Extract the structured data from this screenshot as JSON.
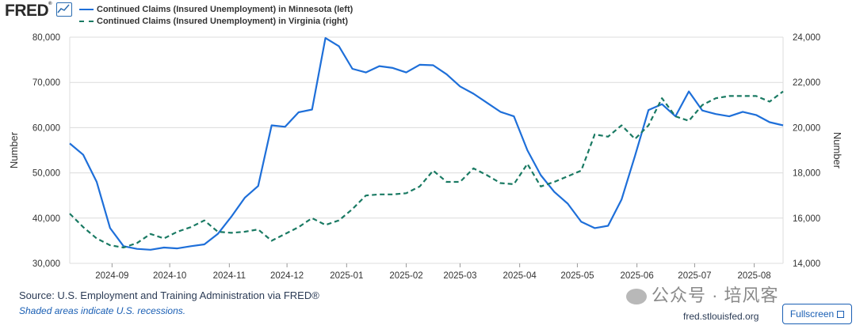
{
  "header": {
    "logo_text": "FRED",
    "logo_mark": "®",
    "logo_icon": "line-graph-icon"
  },
  "chart_data": {
    "type": "line",
    "ylabel_left": "Number",
    "ylabel_right": "Number",
    "ylim_left": [
      30000,
      80000
    ],
    "ylim_right": [
      14000,
      24000
    ],
    "yticks_left": [
      "30,000",
      "40,000",
      "50,000",
      "60,000",
      "70,000",
      "80,000"
    ],
    "yticks_right": [
      "14,000",
      "16,000",
      "18,000",
      "20,000",
      "22,000",
      "24,000"
    ],
    "xticks": [
      "2024-09",
      "2024-10",
      "2024-11",
      "2024-12",
      "2025-01",
      "2025-02",
      "2025-03",
      "2025-04",
      "2025-05",
      "2025-06",
      "2025-07",
      "2025-08"
    ],
    "grid": true,
    "legend_position": "top-left",
    "series": [
      {
        "name": "Continued Claims (Insured Unemployment) in Minnesota (left)",
        "axis": "left",
        "style": "solid",
        "color": "#1e6fd9",
        "x": [
          "2024-08-10",
          "2024-08-17",
          "2024-08-24",
          "2024-08-31",
          "2024-09-07",
          "2024-09-14",
          "2024-09-21",
          "2024-09-28",
          "2024-10-05",
          "2024-10-12",
          "2024-10-19",
          "2024-10-26",
          "2024-11-02",
          "2024-11-09",
          "2024-11-16",
          "2024-11-23",
          "2024-11-30",
          "2024-12-07",
          "2024-12-14",
          "2024-12-21",
          "2024-12-28",
          "2025-01-04",
          "2025-01-11",
          "2025-01-18",
          "2025-01-25",
          "2025-02-01",
          "2025-02-08",
          "2025-02-15",
          "2025-02-22",
          "2025-03-01",
          "2025-03-08",
          "2025-03-15",
          "2025-03-22",
          "2025-03-29",
          "2025-04-05",
          "2025-04-12",
          "2025-04-19",
          "2025-04-26",
          "2025-05-03",
          "2025-05-10",
          "2025-05-17",
          "2025-05-24",
          "2025-05-31",
          "2025-06-07",
          "2025-06-14",
          "2025-06-21",
          "2025-06-28",
          "2025-07-05",
          "2025-07-12",
          "2025-07-19",
          "2025-07-26",
          "2025-08-02",
          "2025-08-09",
          "2025-08-16"
        ],
        "values": [
          56500,
          54000,
          48000,
          37800,
          33800,
          33200,
          33000,
          33500,
          33300,
          33800,
          34200,
          36500,
          40300,
          44500,
          47100,
          60500,
          60200,
          63400,
          64000,
          79800,
          78000,
          73000,
          72200,
          73600,
          73200,
          72200,
          73900,
          73800,
          71800,
          69100,
          67500,
          65500,
          63500,
          62500,
          55000,
          49500,
          45800,
          43200,
          39200,
          37800,
          38300,
          44100,
          53800,
          63900,
          65200,
          62500,
          68000,
          63800,
          63000,
          62500,
          63500,
          62800,
          61200,
          60500
        ]
      },
      {
        "name": "Continued Claims (Insured Unemployment) in Virginia (right)",
        "axis": "right",
        "style": "dashed",
        "color": "#1a7a63",
        "x": [
          "2024-08-10",
          "2024-08-17",
          "2024-08-24",
          "2024-08-31",
          "2024-09-07",
          "2024-09-14",
          "2024-09-21",
          "2024-09-28",
          "2024-10-05",
          "2024-10-12",
          "2024-10-19",
          "2024-10-26",
          "2024-11-02",
          "2024-11-09",
          "2024-11-16",
          "2024-11-23",
          "2024-11-30",
          "2024-12-07",
          "2024-12-14",
          "2024-12-21",
          "2024-12-28",
          "2025-01-04",
          "2025-01-11",
          "2025-01-18",
          "2025-01-25",
          "2025-02-01",
          "2025-02-08",
          "2025-02-15",
          "2025-02-22",
          "2025-03-01",
          "2025-03-08",
          "2025-03-15",
          "2025-03-22",
          "2025-03-29",
          "2025-04-05",
          "2025-04-12",
          "2025-04-19",
          "2025-04-26",
          "2025-05-03",
          "2025-05-10",
          "2025-05-17",
          "2025-05-24",
          "2025-05-31",
          "2025-06-07",
          "2025-06-14",
          "2025-06-21",
          "2025-06-28",
          "2025-07-05",
          "2025-07-12",
          "2025-07-19",
          "2025-07-26",
          "2025-08-02",
          "2025-08-09",
          "2025-08-16"
        ],
        "values": [
          16200,
          15600,
          15100,
          14800,
          14700,
          14900,
          15300,
          15100,
          15400,
          15600,
          15900,
          15400,
          15350,
          15400,
          15500,
          15000,
          15300,
          15600,
          16000,
          15700,
          15900,
          16400,
          17000,
          17050,
          17050,
          17100,
          17400,
          18100,
          17600,
          17600,
          18200,
          17900,
          17550,
          17500,
          18400,
          17400,
          17600,
          17850,
          18100,
          19700,
          19600,
          20100,
          19500,
          20100,
          21300,
          20500,
          20300,
          21000,
          21300,
          21400,
          21400,
          21400,
          21150,
          21600
        ]
      }
    ]
  },
  "footer": {
    "source": "Source: U.S. Employment and Training Administration via FRED®",
    "note": "Shaded areas indicate U.S. recessions.",
    "url": "fred.stlouisfed.org",
    "fullscreen_label": "Fullscreen",
    "watermark": "公众号 · 培风客"
  }
}
